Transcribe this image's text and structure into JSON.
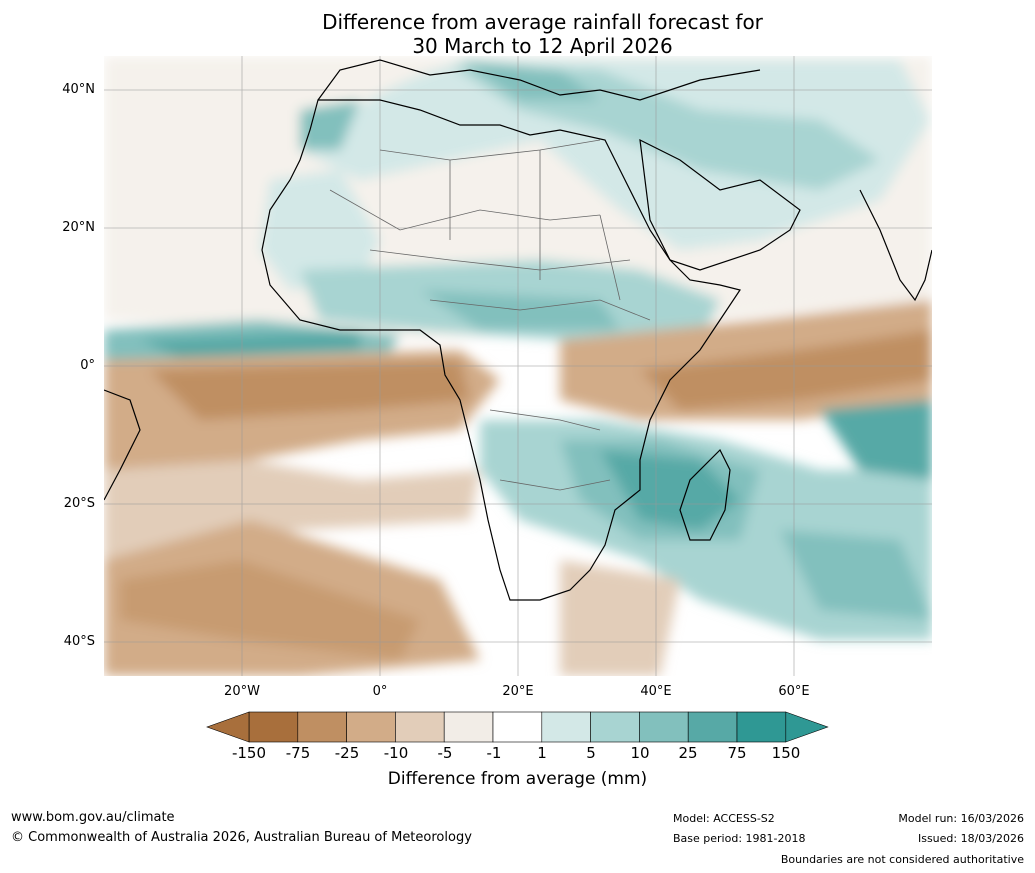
{
  "title": {
    "line1": "Difference from average rainfall forecast for",
    "line2": "30 March to 12 April 2026"
  },
  "map": {
    "lat_labels": [
      "40°N",
      "20°N",
      "0°",
      "20°S",
      "40°S"
    ],
    "lon_labels": [
      "20°W",
      "0°",
      "20°E",
      "40°E",
      "60°E"
    ],
    "region": "Africa"
  },
  "colorbar": {
    "title": "Difference from average (mm)",
    "ticks": [
      "-150",
      "-75",
      "-25",
      "-10",
      "-5",
      "-1",
      "1",
      "5",
      "10",
      "25",
      "75",
      "150"
    ],
    "colors": [
      "#a86f3c",
      "#bf8f62",
      "#d2ac88",
      "#e2cdb9",
      "#f2ede7",
      "#ffffff",
      "#d3e8e7",
      "#a8d4d2",
      "#82c0bd",
      "#57a9a6",
      "#2f9894"
    ],
    "under_color": "#a86f3c",
    "over_color": "#2f9894"
  },
  "footer": {
    "website": "www.bom.gov.au/climate",
    "copyright": "© Commonwealth of Australia 2026, Australian Bureau of Meteorology",
    "model": "Model: ACCESS-S2",
    "base_period": "Base period: 1981-2018",
    "model_run": "Model run: 16/03/2026",
    "issued": "Issued: 18/03/2026",
    "disclaimer": "Boundaries are not considered authoritative"
  }
}
